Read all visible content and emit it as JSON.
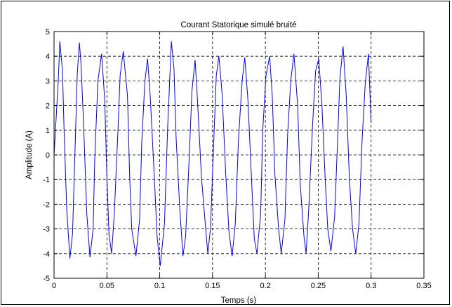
{
  "chart_data": {
    "type": "line",
    "title": "Courant Statorique simulé bruité",
    "xlabel": "Temps (s)",
    "ylabel": "Amplitude (A)",
    "xlim": [
      0,
      0.35
    ],
    "ylim": [
      -5,
      5
    ],
    "x_ticks": [
      0,
      0.05,
      0.1,
      0.15,
      0.2,
      0.25,
      0.3,
      0.35
    ],
    "x_tick_labels": [
      "0",
      "0.05",
      "0.1",
      "0.15",
      "0.2",
      "0.25",
      "0.3",
      "0.35"
    ],
    "y_ticks": [
      -5,
      -4,
      -3,
      -2,
      -1,
      0,
      1,
      2,
      3,
      4,
      5
    ],
    "y_tick_labels": [
      "-5",
      "-4",
      "-3",
      "-2",
      "-1",
      "0",
      "1",
      "2",
      "3",
      "4",
      "5"
    ],
    "grid": true,
    "series": [
      {
        "color": "#0000ff",
        "x": [
          0.0,
          0.004,
          0.0055,
          0.008,
          0.0095,
          0.012,
          0.015,
          0.0175,
          0.02,
          0.022,
          0.024,
          0.0255,
          0.028,
          0.031,
          0.034,
          0.037,
          0.0385,
          0.0415,
          0.045,
          0.048,
          0.05,
          0.052,
          0.0545,
          0.057,
          0.0605,
          0.0625,
          0.0655,
          0.0695,
          0.0715,
          0.0735,
          0.0775,
          0.081,
          0.083,
          0.086,
          0.0885,
          0.091,
          0.095,
          0.0975,
          0.1005,
          0.1045,
          0.1075,
          0.111,
          0.1135,
          0.1155,
          0.119,
          0.122,
          0.1245,
          0.1275,
          0.1305,
          0.1335,
          0.1355,
          0.1395,
          0.1435,
          0.1455,
          0.148,
          0.151,
          0.1535,
          0.156,
          0.159,
          0.1625,
          0.1655,
          0.1685,
          0.1715,
          0.1745,
          0.178,
          0.1805,
          0.1835,
          0.187,
          0.1895,
          0.192,
          0.1955,
          0.1975,
          0.2005,
          0.204,
          0.2065,
          0.209,
          0.2125,
          0.215,
          0.2185,
          0.221,
          0.224,
          0.227,
          0.2305,
          0.233,
          0.2365,
          0.2385,
          0.241,
          0.2445,
          0.2475,
          0.2505,
          0.2535,
          0.2565,
          0.259,
          0.262,
          0.2655,
          0.2685,
          0.2705,
          0.2735,
          0.2765,
          0.2795,
          0.2825,
          0.2855,
          0.2885,
          0.2915,
          0.2945,
          0.2975,
          0.3
        ],
        "y": [
          0.0,
          3.0,
          4.6,
          3.4,
          1.0,
          -2.2,
          -4.2,
          -3.2,
          0.4,
          3.3,
          4.55,
          3.7,
          1.2,
          -2.4,
          -4.15,
          -3.0,
          -0.2,
          3.0,
          4.1,
          2.2,
          -0.9,
          -3.2,
          -4.0,
          -2.4,
          1.0,
          3.2,
          4.2,
          2.4,
          -0.8,
          -3.0,
          -4.1,
          -2.6,
          0.5,
          3.0,
          3.9,
          2.4,
          -1.0,
          -3.3,
          -4.5,
          -2.8,
          1.1,
          4.6,
          3.5,
          0.7,
          -2.2,
          -4.1,
          -3.3,
          -0.5,
          2.6,
          3.85,
          2.4,
          -0.9,
          -3.0,
          -4.0,
          -3.0,
          0.4,
          3.2,
          4.0,
          2.5,
          -0.8,
          -3.1,
          -4.1,
          -2.8,
          0.6,
          3.0,
          3.95,
          2.2,
          -1.1,
          -3.4,
          -4.0,
          -2.4,
          1.0,
          3.2,
          4.0,
          2.4,
          -0.8,
          -3.0,
          -4.0,
          -2.6,
          0.8,
          3.0,
          4.1,
          2.0,
          -1.2,
          -3.3,
          -4.0,
          -2.2,
          1.1,
          3.4,
          3.9,
          2.0,
          -0.9,
          -3.0,
          -3.9,
          -2.5,
          0.8,
          3.1,
          4.4,
          2.4,
          -1.0,
          -3.0,
          -4.0,
          -2.8,
          0.6,
          2.9,
          4.1,
          1.3
        ]
      }
    ]
  }
}
